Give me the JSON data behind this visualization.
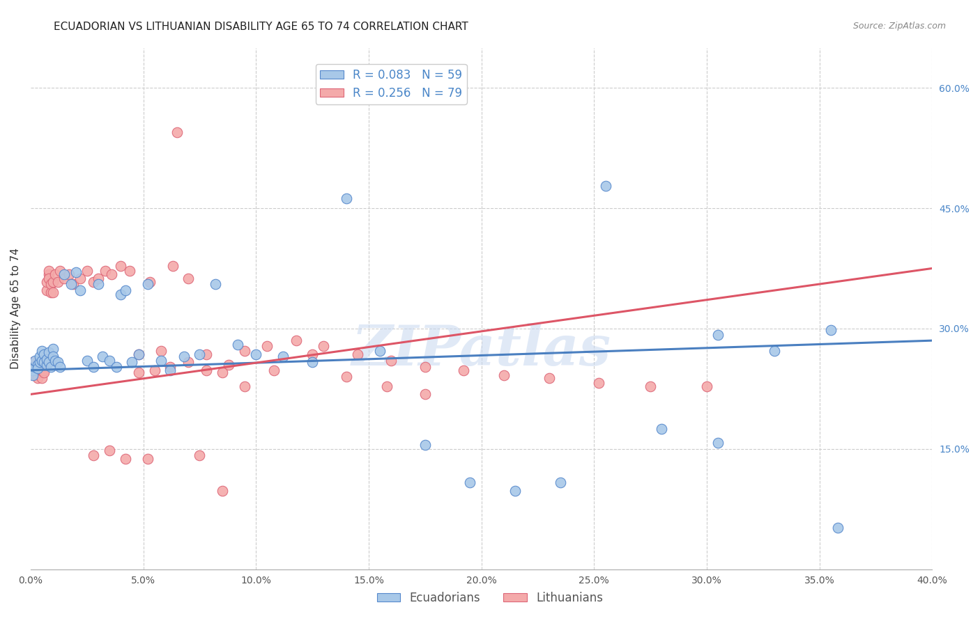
{
  "title": "ECUADORIAN VS LITHUANIAN DISABILITY AGE 65 TO 74 CORRELATION CHART",
  "source": "Source: ZipAtlas.com",
  "ylabel": "Disability Age 65 to 74",
  "watermark": "ZIPatlas",
  "legend_blue_label": "R = 0.083   N = 59",
  "legend_pink_label": "R = 0.256   N = 79",
  "blue_fill": "#a8c8e8",
  "pink_fill": "#f4aaaa",
  "blue_edge": "#5588cc",
  "pink_edge": "#dd6677",
  "blue_line": "#4a7fc0",
  "pink_line": "#dd5566",
  "ecuadorians_label": "Ecuadorians",
  "lithuanians_label": "Lithuanians",
  "xlim": [
    0.0,
    0.4
  ],
  "ylim": [
    0.0,
    0.65
  ],
  "blue_scatter_x": [
    0.001,
    0.001,
    0.002,
    0.002,
    0.003,
    0.003,
    0.004,
    0.004,
    0.005,
    0.005,
    0.006,
    0.006,
    0.007,
    0.007,
    0.008,
    0.008,
    0.009,
    0.01,
    0.01,
    0.011,
    0.012,
    0.013,
    0.015,
    0.018,
    0.02,
    0.022,
    0.025,
    0.028,
    0.03,
    0.032,
    0.035,
    0.038,
    0.04,
    0.042,
    0.045,
    0.048,
    0.052,
    0.058,
    0.062,
    0.068,
    0.075,
    0.082,
    0.092,
    0.1,
    0.112,
    0.125,
    0.14,
    0.155,
    0.175,
    0.195,
    0.215,
    0.235,
    0.255,
    0.28,
    0.305,
    0.33,
    0.355,
    0.358,
    0.305
  ],
  "blue_scatter_y": [
    0.248,
    0.242,
    0.252,
    0.26,
    0.255,
    0.25,
    0.258,
    0.265,
    0.26,
    0.272,
    0.268,
    0.258,
    0.255,
    0.262,
    0.27,
    0.258,
    0.252,
    0.275,
    0.265,
    0.26,
    0.258,
    0.252,
    0.368,
    0.355,
    0.37,
    0.348,
    0.26,
    0.252,
    0.355,
    0.265,
    0.26,
    0.252,
    0.342,
    0.348,
    0.258,
    0.268,
    0.355,
    0.26,
    0.248,
    0.265,
    0.268,
    0.355,
    0.28,
    0.268,
    0.265,
    0.258,
    0.462,
    0.272,
    0.155,
    0.108,
    0.098,
    0.108,
    0.478,
    0.175,
    0.158,
    0.272,
    0.298,
    0.052,
    0.292
  ],
  "pink_scatter_x": [
    0.001,
    0.001,
    0.001,
    0.002,
    0.002,
    0.002,
    0.003,
    0.003,
    0.003,
    0.004,
    0.004,
    0.004,
    0.005,
    0.005,
    0.005,
    0.006,
    0.006,
    0.007,
    0.007,
    0.008,
    0.008,
    0.008,
    0.009,
    0.009,
    0.01,
    0.01,
    0.011,
    0.012,
    0.013,
    0.015,
    0.017,
    0.019,
    0.022,
    0.025,
    0.028,
    0.03,
    0.033,
    0.036,
    0.04,
    0.044,
    0.048,
    0.053,
    0.058,
    0.063,
    0.07,
    0.078,
    0.088,
    0.095,
    0.105,
    0.118,
    0.13,
    0.145,
    0.16,
    0.175,
    0.192,
    0.21,
    0.23,
    0.252,
    0.275,
    0.3,
    0.065,
    0.075,
    0.085,
    0.095,
    0.108,
    0.125,
    0.14,
    0.158,
    0.175,
    0.052,
    0.028,
    0.035,
    0.042,
    0.048,
    0.055,
    0.062,
    0.07,
    0.078,
    0.085
  ],
  "pink_scatter_y": [
    0.248,
    0.252,
    0.258,
    0.245,
    0.252,
    0.242,
    0.248,
    0.252,
    0.238,
    0.245,
    0.252,
    0.248,
    0.238,
    0.248,
    0.252,
    0.248,
    0.245,
    0.348,
    0.358,
    0.368,
    0.372,
    0.362,
    0.345,
    0.355,
    0.345,
    0.358,
    0.368,
    0.358,
    0.372,
    0.362,
    0.368,
    0.355,
    0.362,
    0.372,
    0.358,
    0.362,
    0.372,
    0.368,
    0.378,
    0.372,
    0.268,
    0.358,
    0.272,
    0.378,
    0.362,
    0.268,
    0.255,
    0.272,
    0.278,
    0.285,
    0.278,
    0.268,
    0.26,
    0.252,
    0.248,
    0.242,
    0.238,
    0.232,
    0.228,
    0.228,
    0.545,
    0.142,
    0.098,
    0.228,
    0.248,
    0.268,
    0.24,
    0.228,
    0.218,
    0.138,
    0.142,
    0.148,
    0.138,
    0.245,
    0.248,
    0.252,
    0.258,
    0.248,
    0.245
  ],
  "blue_line_x": [
    0.0,
    0.4
  ],
  "blue_line_y": [
    0.248,
    0.285
  ],
  "pink_line_x": [
    0.0,
    0.4
  ],
  "pink_line_y": [
    0.218,
    0.375
  ]
}
